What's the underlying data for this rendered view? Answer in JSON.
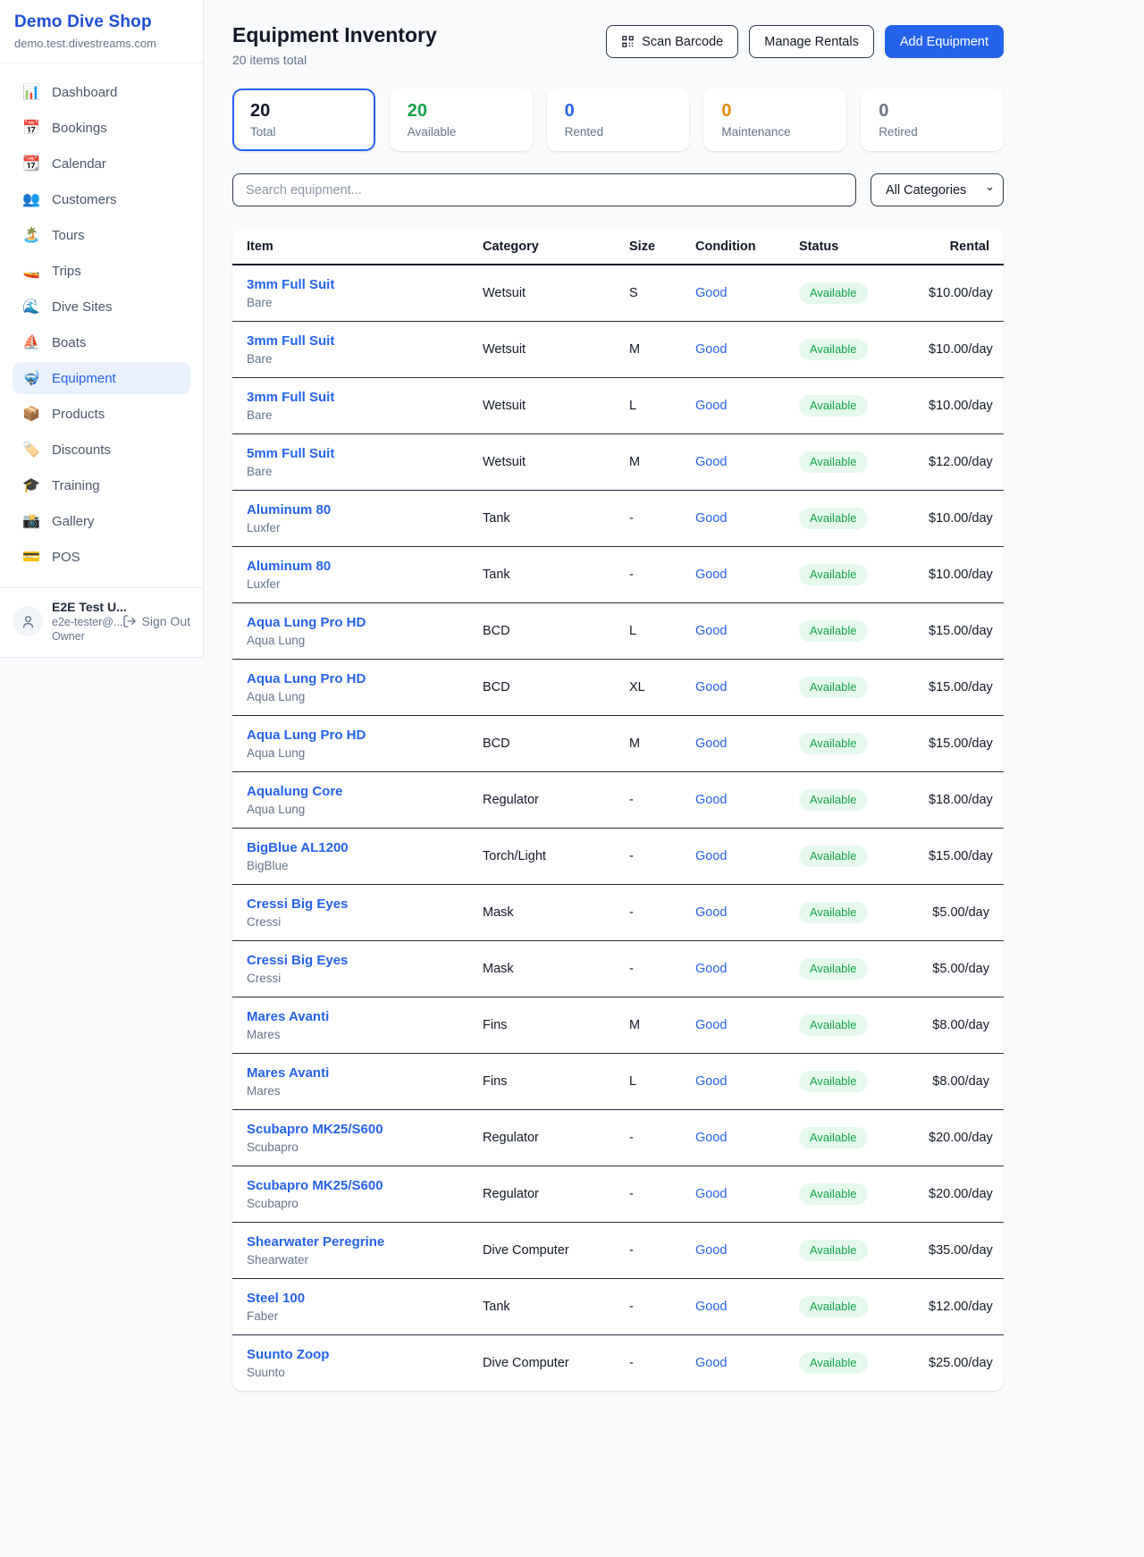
{
  "brand": {
    "name": "Demo Dive Shop",
    "domain": "demo.test.divestreams.com"
  },
  "sidebar": {
    "items": [
      {
        "slug": "dashboard",
        "label": "Dashboard",
        "icon": "bar-chart-icon",
        "glyph": "📊",
        "active": false
      },
      {
        "slug": "bookings",
        "label": "Bookings",
        "icon": "calendar-date-icon",
        "glyph": "📅",
        "active": false
      },
      {
        "slug": "calendar",
        "label": "Calendar",
        "icon": "tear-off-calendar-icon",
        "glyph": "📆",
        "active": false
      },
      {
        "slug": "customers",
        "label": "Customers",
        "icon": "people-icon",
        "glyph": "👥",
        "active": false
      },
      {
        "slug": "tours",
        "label": "Tours",
        "icon": "island-icon",
        "glyph": "🏝️",
        "active": false
      },
      {
        "slug": "trips",
        "label": "Trips",
        "icon": "speedboat-icon",
        "glyph": "🚤",
        "active": false
      },
      {
        "slug": "dive-sites",
        "label": "Dive Sites",
        "icon": "wave-icon",
        "glyph": "🌊",
        "active": false
      },
      {
        "slug": "boats",
        "label": "Boats",
        "icon": "sailboat-icon",
        "glyph": "⛵",
        "active": false
      },
      {
        "slug": "equipment",
        "label": "Equipment",
        "icon": "diving-mask-icon",
        "glyph": "🤿",
        "active": true
      },
      {
        "slug": "products",
        "label": "Products",
        "icon": "package-icon",
        "glyph": "📦",
        "active": false
      },
      {
        "slug": "discounts",
        "label": "Discounts",
        "icon": "label-tag-icon",
        "glyph": "🏷️",
        "active": false
      },
      {
        "slug": "training",
        "label": "Training",
        "icon": "graduation-cap-icon",
        "glyph": "🎓",
        "active": false
      },
      {
        "slug": "gallery",
        "label": "Gallery",
        "icon": "camera-flash-icon",
        "glyph": "📸",
        "active": false
      },
      {
        "slug": "pos",
        "label": "POS",
        "icon": "credit-card-icon",
        "glyph": "💳",
        "active": false
      }
    ]
  },
  "user": {
    "name": "E2E Test U...",
    "email": "e2e-tester@...",
    "role": "Owner",
    "sign_out_label": "Sign Out"
  },
  "header": {
    "title": "Equipment Inventory",
    "subtitle": "20 items total",
    "scan_barcode_label": "Scan Barcode",
    "manage_rentals_label": "Manage Rentals",
    "add_equipment_label": "Add Equipment"
  },
  "stats": [
    {
      "slug": "total",
      "value": "20",
      "label": "Total",
      "color": "#111827",
      "selected": true
    },
    {
      "slug": "available",
      "value": "20",
      "label": "Available",
      "color": "#16a34a",
      "selected": false
    },
    {
      "slug": "rented",
      "value": "0",
      "label": "Rented",
      "color": "#2563eb",
      "selected": false
    },
    {
      "slug": "maintenance",
      "value": "0",
      "label": "Maintenance",
      "color": "#e8890c",
      "selected": false
    },
    {
      "slug": "retired",
      "value": "0",
      "label": "Retired",
      "color": "#6b7280",
      "selected": false
    }
  ],
  "filters": {
    "search_placeholder": "Search equipment...",
    "category_selected": "All Categories"
  },
  "table": {
    "columns": [
      "Item",
      "Category",
      "Size",
      "Condition",
      "Status",
      "Rental"
    ],
    "rows": [
      {
        "name": "3mm Full Suit",
        "brand": "Bare",
        "category": "Wetsuit",
        "size": "S",
        "condition": "Good",
        "status": "Available",
        "rental": "$10.00/day"
      },
      {
        "name": "3mm Full Suit",
        "brand": "Bare",
        "category": "Wetsuit",
        "size": "M",
        "condition": "Good",
        "status": "Available",
        "rental": "$10.00/day"
      },
      {
        "name": "3mm Full Suit",
        "brand": "Bare",
        "category": "Wetsuit",
        "size": "L",
        "condition": "Good",
        "status": "Available",
        "rental": "$10.00/day"
      },
      {
        "name": "5mm Full Suit",
        "brand": "Bare",
        "category": "Wetsuit",
        "size": "M",
        "condition": "Good",
        "status": "Available",
        "rental": "$12.00/day"
      },
      {
        "name": "Aluminum 80",
        "brand": "Luxfer",
        "category": "Tank",
        "size": "-",
        "condition": "Good",
        "status": "Available",
        "rental": "$10.00/day"
      },
      {
        "name": "Aluminum 80",
        "brand": "Luxfer",
        "category": "Tank",
        "size": "-",
        "condition": "Good",
        "status": "Available",
        "rental": "$10.00/day"
      },
      {
        "name": "Aqua Lung Pro HD",
        "brand": "Aqua Lung",
        "category": "BCD",
        "size": "L",
        "condition": "Good",
        "status": "Available",
        "rental": "$15.00/day"
      },
      {
        "name": "Aqua Lung Pro HD",
        "brand": "Aqua Lung",
        "category": "BCD",
        "size": "XL",
        "condition": "Good",
        "status": "Available",
        "rental": "$15.00/day"
      },
      {
        "name": "Aqua Lung Pro HD",
        "brand": "Aqua Lung",
        "category": "BCD",
        "size": "M",
        "condition": "Good",
        "status": "Available",
        "rental": "$15.00/day"
      },
      {
        "name": "Aqualung Core",
        "brand": "Aqua Lung",
        "category": "Regulator",
        "size": "-",
        "condition": "Good",
        "status": "Available",
        "rental": "$18.00/day"
      },
      {
        "name": "BigBlue AL1200",
        "brand": "BigBlue",
        "category": "Torch/Light",
        "size": "-",
        "condition": "Good",
        "status": "Available",
        "rental": "$15.00/day"
      },
      {
        "name": "Cressi Big Eyes",
        "brand": "Cressi",
        "category": "Mask",
        "size": "-",
        "condition": "Good",
        "status": "Available",
        "rental": "$5.00/day"
      },
      {
        "name": "Cressi Big Eyes",
        "brand": "Cressi",
        "category": "Mask",
        "size": "-",
        "condition": "Good",
        "status": "Available",
        "rental": "$5.00/day"
      },
      {
        "name": "Mares Avanti",
        "brand": "Mares",
        "category": "Fins",
        "size": "M",
        "condition": "Good",
        "status": "Available",
        "rental": "$8.00/day"
      },
      {
        "name": "Mares Avanti",
        "brand": "Mares",
        "category": "Fins",
        "size": "L",
        "condition": "Good",
        "status": "Available",
        "rental": "$8.00/day"
      },
      {
        "name": "Scubapro MK25/S600",
        "brand": "Scubapro",
        "category": "Regulator",
        "size": "-",
        "condition": "Good",
        "status": "Available",
        "rental": "$20.00/day"
      },
      {
        "name": "Scubapro MK25/S600",
        "brand": "Scubapro",
        "category": "Regulator",
        "size": "-",
        "condition": "Good",
        "status": "Available",
        "rental": "$20.00/day"
      },
      {
        "name": "Shearwater Peregrine",
        "brand": "Shearwater",
        "category": "Dive Computer",
        "size": "-",
        "condition": "Good",
        "status": "Available",
        "rental": "$35.00/day"
      },
      {
        "name": "Steel 100",
        "brand": "Faber",
        "category": "Tank",
        "size": "-",
        "condition": "Good",
        "status": "Available",
        "rental": "$12.00/day"
      },
      {
        "name": "Suunto Zoop",
        "brand": "Suunto",
        "category": "Dive Computer",
        "size": "-",
        "condition": "Good",
        "status": "Available",
        "rental": "$25.00/day"
      }
    ]
  },
  "colors": {
    "accent": "#2563eb",
    "brand_blue": "#1d4ed8",
    "available_green": "#16a34a",
    "maintenance_orange": "#e8890c",
    "pill_bg": "#e4f9ec",
    "page_bg": "#f8fafc"
  }
}
